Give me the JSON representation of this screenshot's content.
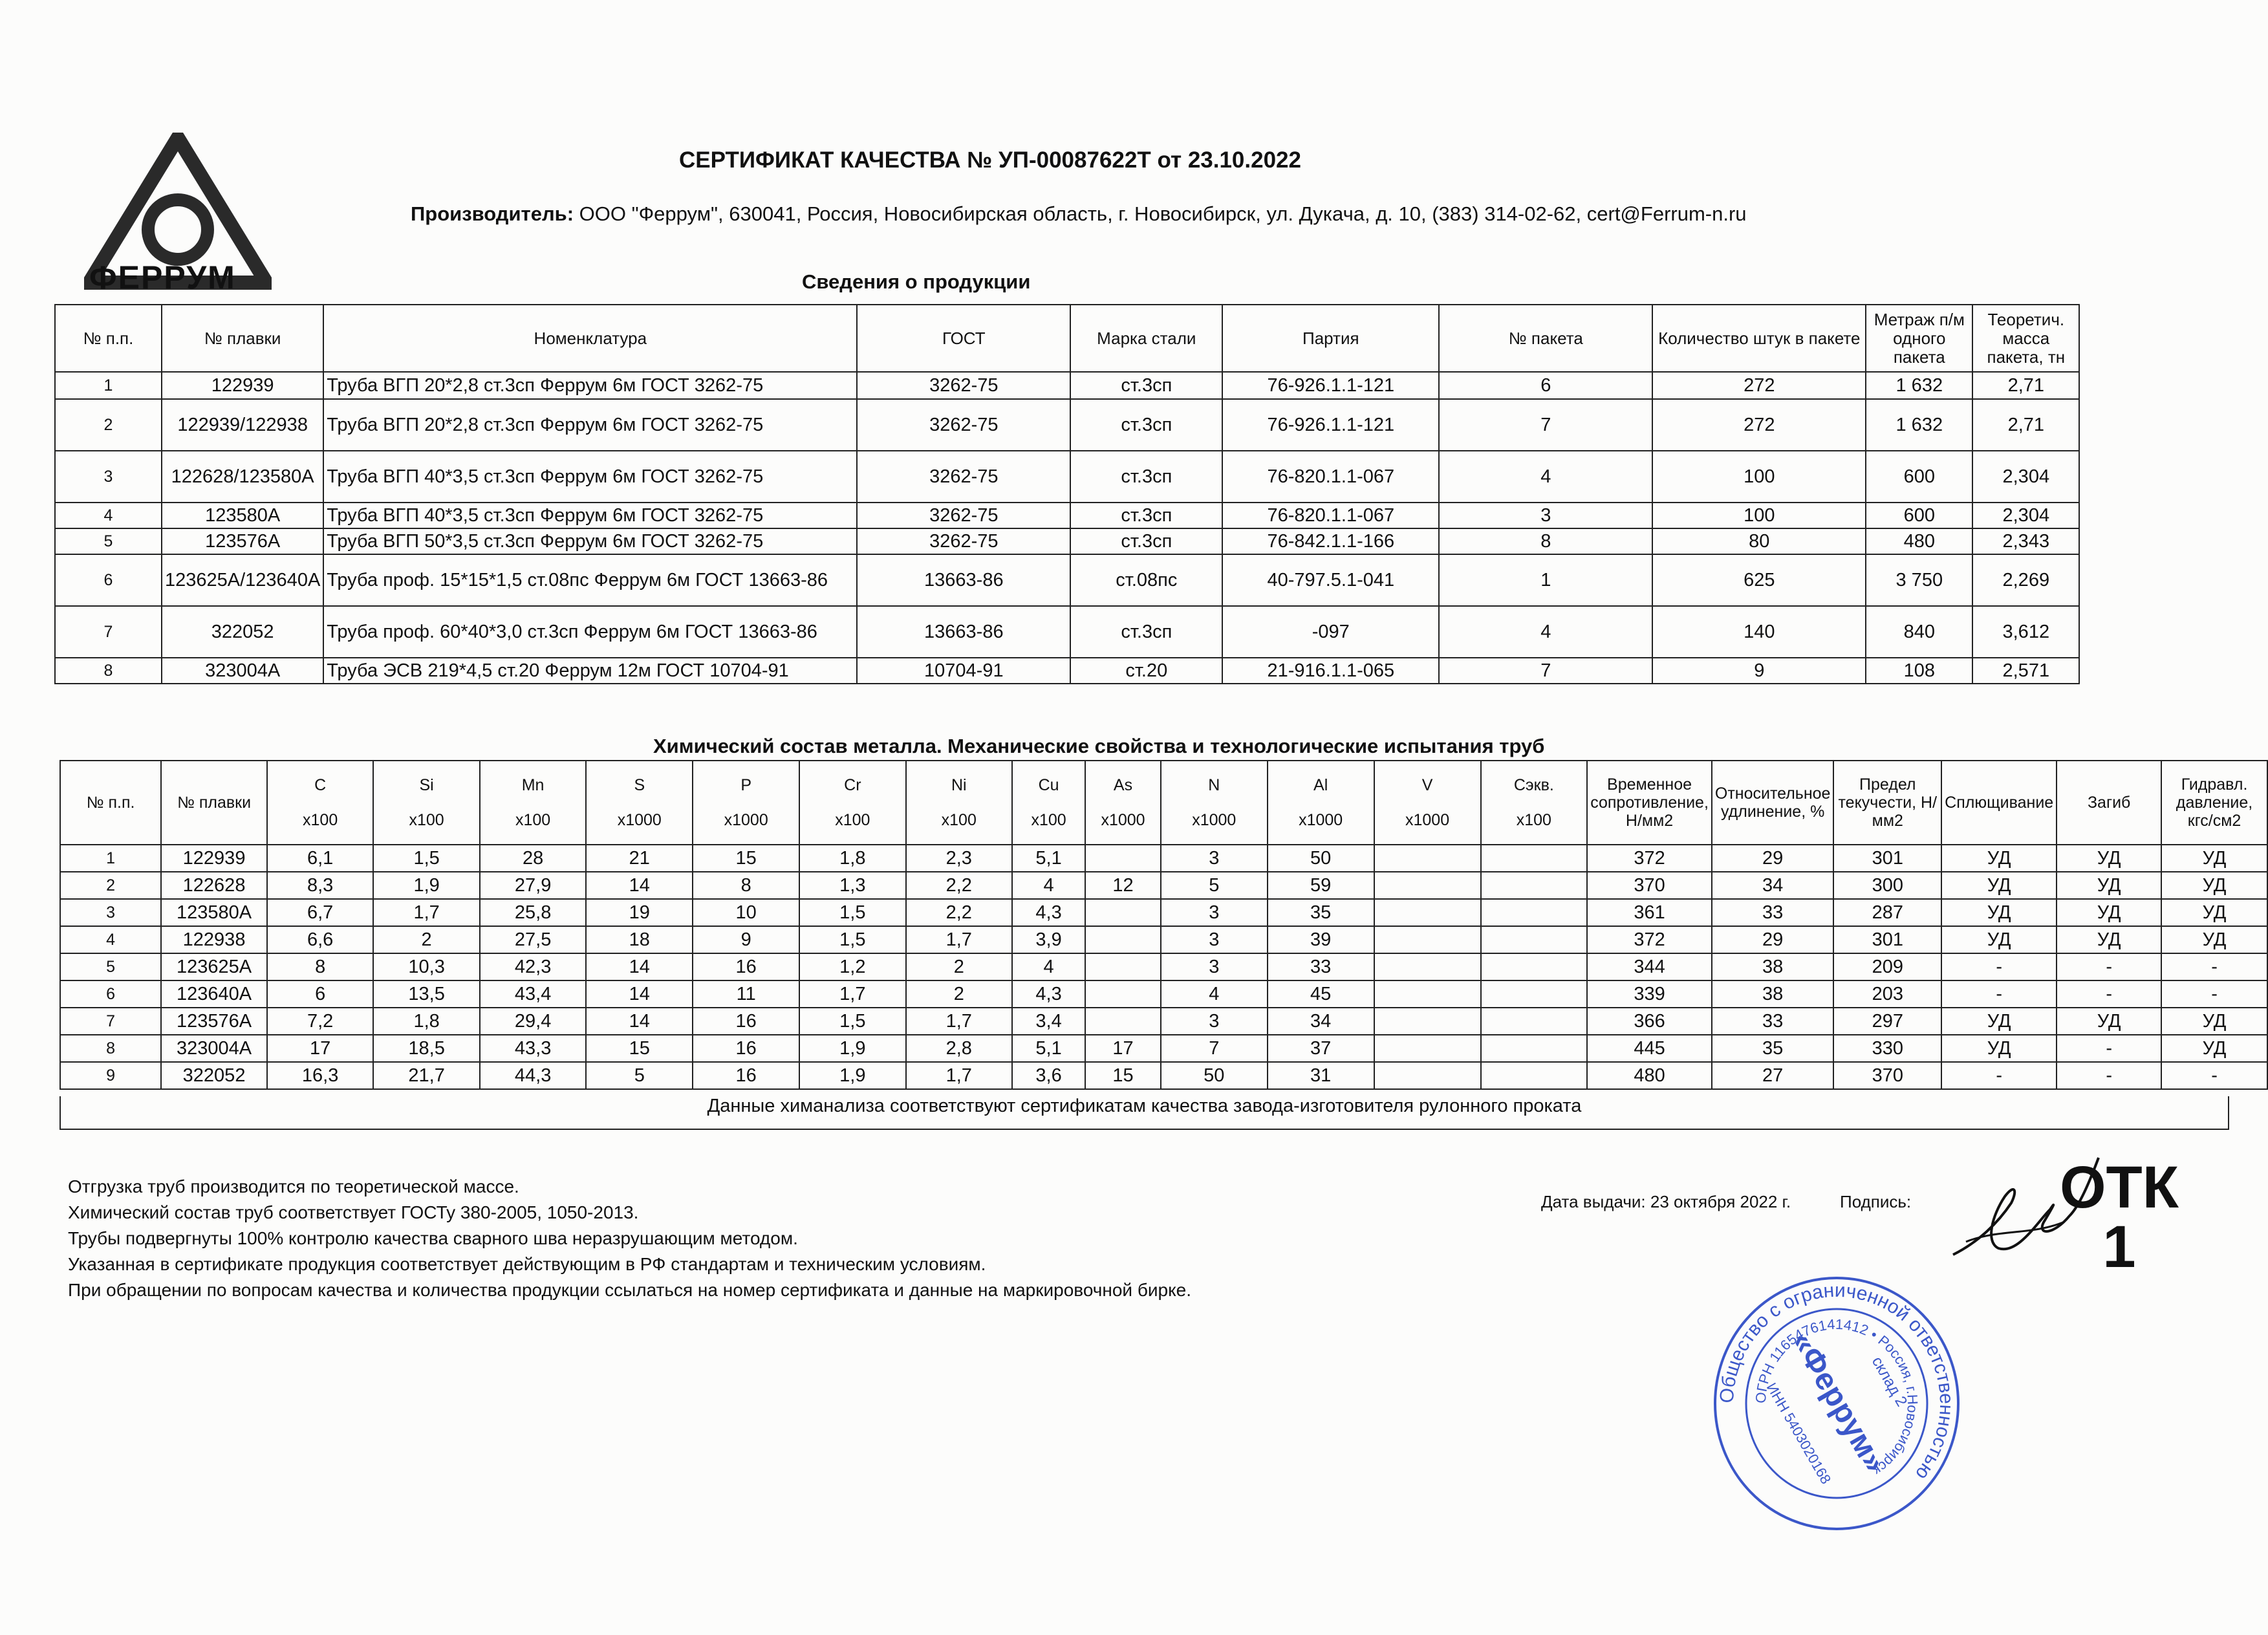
{
  "logo": {
    "text": "ФЕРРУМ"
  },
  "title": "СЕРТИФИКАТ КАЧЕСТВА № УП-00087622Т от 23.10.2022",
  "producer": {
    "label": "Производитель:",
    "value": "ООО \"Феррум\", 630041, Россия, Новосибирская область, г. Новосибирск, ул. Дукача, д. 10, (383) 314-02-62, cert@Ferrum-n.ru"
  },
  "products": {
    "heading": "Сведения о продукции",
    "columns": [
      "№ п.п.",
      "№ плавки",
      "Номенклатура",
      "ГОСТ",
      "Марка стали",
      "Партия",
      "№ пакета",
      "Количество штук в пакете",
      "Метраж п/м одного пакета",
      "Теоретич. масса пакета, тн"
    ],
    "rows": [
      [
        "1",
        "122939",
        "Труба ВГП 20*2,8 ст.3сп Феррум 6м ГОСТ 3262-75",
        "3262-75",
        "ст.3сп",
        "76-926.1.1-121",
        "6",
        "272",
        "1 632",
        "2,71"
      ],
      [
        "2",
        "122939/122938",
        "Труба ВГП 20*2,8 ст.3сп Феррум 6м ГОСТ 3262-75",
        "3262-75",
        "ст.3сп",
        "76-926.1.1-121",
        "7",
        "272",
        "1 632",
        "2,71"
      ],
      [
        "3",
        "122628/123580А",
        "Труба ВГП 40*3,5 ст.3сп Феррум 6м ГОСТ 3262-75",
        "3262-75",
        "ст.3сп",
        "76-820.1.1-067",
        "4",
        "100",
        "600",
        "2,304"
      ],
      [
        "4",
        "123580А",
        "Труба ВГП 40*3,5 ст.3сп Феррум 6м ГОСТ 3262-75",
        "3262-75",
        "ст.3сп",
        "76-820.1.1-067",
        "3",
        "100",
        "600",
        "2,304"
      ],
      [
        "5",
        "123576А",
        "Труба ВГП 50*3,5 ст.3сп Феррум 6м ГОСТ 3262-75",
        "3262-75",
        "ст.3сп",
        "76-842.1.1-166",
        "8",
        "80",
        "480",
        "2,343"
      ],
      [
        "6",
        "123625А/123640А",
        "Труба проф. 15*15*1,5 ст.08пс Феррум 6м ГОСТ 13663-86",
        "13663-86",
        "ст.08пс",
        "40-797.5.1-041",
        "1",
        "625",
        "3 750",
        "2,269"
      ],
      [
        "7",
        "322052",
        "Труба проф. 60*40*3,0 ст.3сп Феррум 6м ГОСТ 13663-86",
        "13663-86",
        "ст.3сп",
        "-097",
        "4",
        "140",
        "840",
        "3,612"
      ],
      [
        "8",
        "323004А",
        "Труба ЭСВ 219*4,5 ст.20 Феррум 12м ГОСТ 10704-91",
        "10704-91",
        "ст.20",
        "21-916.1.1-065",
        "7",
        "9",
        "108",
        "2,571"
      ]
    ]
  },
  "chemistry": {
    "heading": "Химический состав металла. Механические свойства  и технологические испытания труб",
    "col_no": "№ п.п.",
    "col_melt": "№ плавки",
    "elements": [
      {
        "name": "C",
        "unit": "х100"
      },
      {
        "name": "Si",
        "unit": "х100"
      },
      {
        "name": "Mn",
        "unit": "х100"
      },
      {
        "name": "S",
        "unit": "х1000"
      },
      {
        "name": "P",
        "unit": "х1000"
      },
      {
        "name": "Cr",
        "unit": "х100"
      },
      {
        "name": "Ni",
        "unit": "х100"
      },
      {
        "name": "Cu",
        "unit": "х100"
      },
      {
        "name": "As",
        "unit": "х1000"
      },
      {
        "name": "N",
        "unit": "х1000"
      },
      {
        "name": "Al",
        "unit": "х1000"
      },
      {
        "name": "V",
        "unit": "х1000"
      },
      {
        "name": "Сэкв.",
        "unit": "х100"
      }
    ],
    "mech_columns": [
      "Временное сопротивление, Н/мм2",
      "Относительное удлинение, %",
      "Предел текучести, Н/мм2",
      "Сплющивание",
      "Загиб",
      "Гидравл. давление, кгс/см2"
    ],
    "rows": [
      [
        "1",
        "122939",
        "6,1",
        "1,5",
        "28",
        "21",
        "15",
        "1,8",
        "2,3",
        "5,1",
        "",
        "3",
        "50",
        "",
        "",
        "372",
        "29",
        "301",
        "УД",
        "УД",
        "УД"
      ],
      [
        "2",
        "122628",
        "8,3",
        "1,9",
        "27,9",
        "14",
        "8",
        "1,3",
        "2,2",
        "4",
        "12",
        "5",
        "59",
        "",
        "",
        "370",
        "34",
        "300",
        "УД",
        "УД",
        "УД"
      ],
      [
        "3",
        "123580А",
        "6,7",
        "1,7",
        "25,8",
        "19",
        "10",
        "1,5",
        "2,2",
        "4,3",
        "",
        "3",
        "35",
        "",
        "",
        "361",
        "33",
        "287",
        "УД",
        "УД",
        "УД"
      ],
      [
        "4",
        "122938",
        "6,6",
        "2",
        "27,5",
        "18",
        "9",
        "1,5",
        "1,7",
        "3,9",
        "",
        "3",
        "39",
        "",
        "",
        "372",
        "29",
        "301",
        "УД",
        "УД",
        "УД"
      ],
      [
        "5",
        "123625А",
        "8",
        "10,3",
        "42,3",
        "14",
        "16",
        "1,2",
        "2",
        "4",
        "",
        "3",
        "33",
        "",
        "",
        "344",
        "38",
        "209",
        "-",
        "-",
        "-"
      ],
      [
        "6",
        "123640А",
        "6",
        "13,5",
        "43,4",
        "14",
        "11",
        "1,7",
        "2",
        "4,3",
        "",
        "4",
        "45",
        "",
        "",
        "339",
        "38",
        "203",
        "-",
        "-",
        "-"
      ],
      [
        "7",
        "123576А",
        "7,2",
        "1,8",
        "29,4",
        "14",
        "16",
        "1,5",
        "1,7",
        "3,4",
        "",
        "3",
        "34",
        "",
        "",
        "366",
        "33",
        "297",
        "УД",
        "УД",
        "УД"
      ],
      [
        "8",
        "323004А",
        "17",
        "18,5",
        "43,3",
        "15",
        "16",
        "1,9",
        "2,8",
        "5,1",
        "17",
        "7",
        "37",
        "",
        "",
        "445",
        "35",
        "330",
        "УД",
        "-",
        "УД"
      ],
      [
        "9",
        "322052",
        "16,3",
        "21,7",
        "44,3",
        "5",
        "16",
        "1,9",
        "1,7",
        "3,6",
        "15",
        "50",
        "31",
        "",
        "",
        "480",
        "27",
        "370",
        "-",
        "-",
        "-"
      ]
    ],
    "footer": "Данные химанализа соответствуют сертификатам качества завода-изготовителя рулонного проката"
  },
  "notes": [
    "Отгрузка труб производится по теоретической массе.",
    "Химический состав труб соответствует ГОСТу 380-2005, 1050-2013.",
    "Трубы подвергнуты 100% контролю качества сварного шва неразрушающим методом.",
    "Указанная в сертификате продукция соответствует действующим в РФ стандартам и техническим условиям.",
    "При обращении по вопросам качества и количества продукции ссылаться на номер сертификата и данные на маркировочной бирке."
  ],
  "issue_date": "Дата выдачи: 23 октября 2022 г.",
  "signature_label": "Подпись:",
  "otk_stamp": {
    "line1": "ОТК",
    "line2": "1"
  },
  "round_stamp": {
    "outer": "Общество с ограниченной ответственностью",
    "ogrn": "ОГРН 1165476141412",
    "city": "Россия, г.Новосибирск",
    "inn": "ИНН 5403020168",
    "center": "«Феррум»",
    "sklad": "склад 2",
    "color": "#3b57c9"
  }
}
